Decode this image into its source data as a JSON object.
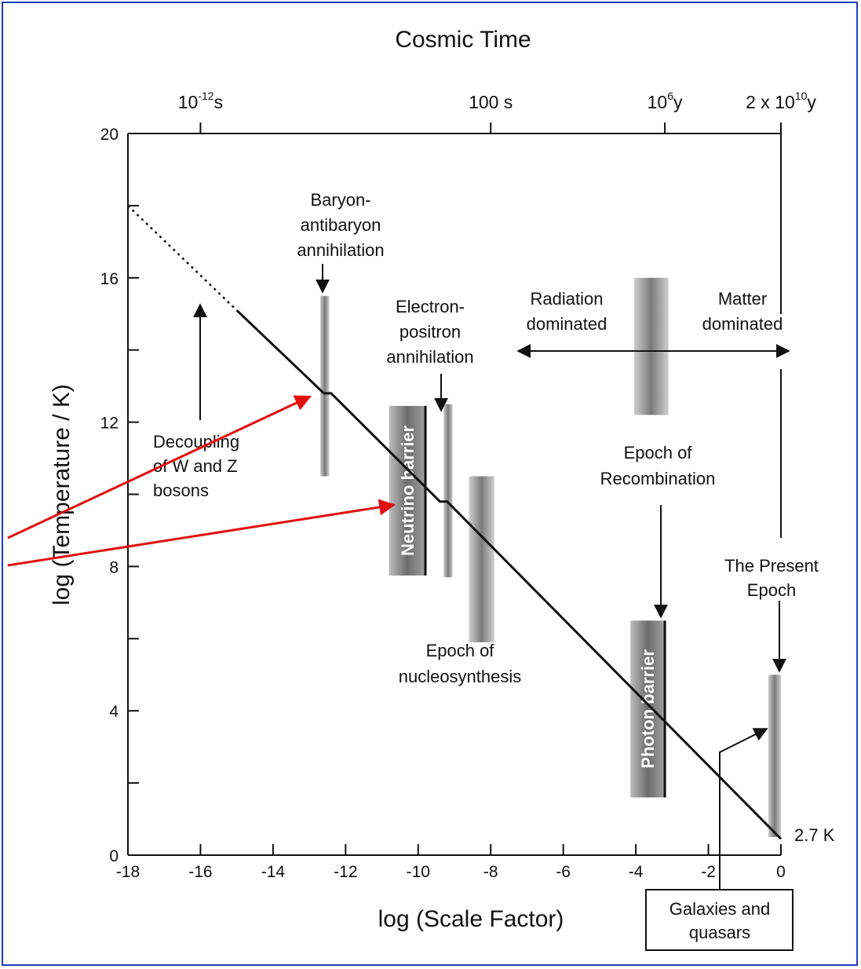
{
  "chart_data": {
    "type": "line",
    "title": "Cosmic Time",
    "xlabel": "log (Scale Factor)",
    "ylabel": "log (Temperature / K)",
    "xlim": [
      -18,
      0
    ],
    "ylim": [
      0,
      20
    ],
    "x_ticks": [
      -18,
      -16,
      -14,
      -12,
      -10,
      -8,
      -6,
      -4,
      -2,
      0
    ],
    "y_ticks": [
      0,
      4,
      8,
      12,
      16,
      20
    ],
    "top_axis": {
      "ticks": [
        {
          "x": -16,
          "base": "10",
          "sup": "-12",
          "suffix": "s"
        },
        {
          "x": -8,
          "base": "100 s",
          "sup": "",
          "suffix": ""
        },
        {
          "x": -3.2,
          "base": "10",
          "sup": "6",
          "suffix": "y"
        },
        {
          "x": 0,
          "base": "2 x 10",
          "sup": "10",
          "suffix": "y"
        }
      ]
    },
    "series": [
      {
        "dotted": [
          [
            -18,
            18
          ],
          [
            -15,
            15.1
          ]
        ],
        "solid": [
          [
            -15,
            15.1
          ],
          [
            -12.6,
            12.8
          ],
          [
            -12.4,
            12.8
          ],
          [
            -9.4,
            9.8
          ],
          [
            -9.2,
            9.8
          ],
          [
            0,
            0.45
          ]
        ]
      }
    ],
    "bands": [
      {
        "x1": -12.7,
        "x2": -12.45,
        "y1": 10.5,
        "y2": 15.5
      },
      {
        "x1": -9.3,
        "x2": -9.05,
        "y1": 7.7,
        "y2": 12.5
      },
      {
        "x1": -8.6,
        "x2": -7.9,
        "y1": 5.9,
        "y2": 10.5
      },
      {
        "x1": -4.05,
        "x2": -3.1,
        "y1": 12.2,
        "y2": 16.0
      },
      {
        "x1": 0.0,
        "x2": -0.35,
        "y1": 0.5,
        "y2": 5.0
      }
    ],
    "barriers": [
      {
        "label": "Neutrino barrier",
        "x1": -10.8,
        "x2": -9.8,
        "y1": 7.75,
        "y2": 12.45
      },
      {
        "label": "Photon barrier",
        "x1": -4.15,
        "x2": -3.2,
        "y1": 1.6,
        "y2": 6.5
      }
    ],
    "annotations": {
      "decoupling": [
        "Decoupling",
        "of W and Z",
        "bosons"
      ],
      "baryon": [
        "Baryon-",
        "antibaryon",
        "annihilation"
      ],
      "electron": [
        "Electron-",
        "positron",
        "annihilation"
      ],
      "radiation": [
        "Radiation",
        "dominated"
      ],
      "matter": [
        "Matter",
        "dominated"
      ],
      "recombination": [
        "Epoch of",
        "Recombination"
      ],
      "present": [
        "The  Present",
        "Epoch"
      ],
      "nucleosynthesis": [
        "Epoch of",
        "nucleosynthesis"
      ],
      "temp_now": "2.7 K",
      "galaxies": [
        "Galaxies and",
        "quasars"
      ]
    },
    "highlight_color": "#e01010",
    "frame_color": "#1f3fbf"
  }
}
